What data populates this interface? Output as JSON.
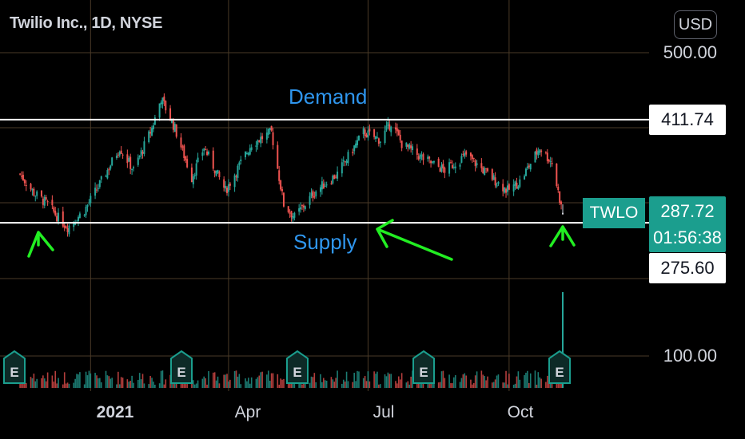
{
  "header": {
    "title": "Twilio Inc., 1D, NYSE",
    "currency": "USD"
  },
  "colors": {
    "up": "#26a69a",
    "down": "#ef5350",
    "grid": "#4a3a27",
    "level_line": "#ffffff",
    "annotation_text": "#2f96ee",
    "annotation_arrow": "#22ee22",
    "tag": "#1b9e8e"
  },
  "axis": {
    "y_ticks": [
      "500.00",
      "100.00"
    ],
    "x_ticks": [
      {
        "label": "2021",
        "bold": true
      },
      {
        "label": "Apr",
        "bold": false
      },
      {
        "label": "Jul",
        "bold": false
      },
      {
        "label": "Oct",
        "bold": false
      }
    ]
  },
  "levels": {
    "demand": {
      "label": "Demand",
      "price": "411.74"
    },
    "supply": {
      "label": "Supply",
      "price": "275.60"
    }
  },
  "last": {
    "symbol": "TWLO",
    "price": "287.72",
    "countdown": "01:56:38"
  },
  "earnings_marker_label": "E",
  "chart_data": {
    "type": "candlestick",
    "title": "Twilio Inc., 1D, NYSE",
    "y_axis": {
      "ticks": [
        100,
        500
      ],
      "currency": "USD"
    },
    "x_axis": {
      "ticks": [
        "2021",
        "Apr",
        "Jul",
        "Oct"
      ]
    },
    "horizontal_levels": [
      {
        "name": "Demand",
        "value": 411.74
      },
      {
        "name": "Supply",
        "value": 275.6
      }
    ],
    "last_price": 287.72,
    "close_path_approx": [
      {
        "date": "2020-11-16",
        "close": 340
      },
      {
        "date": "2020-11-25",
        "close": 315
      },
      {
        "date": "2020-12-04",
        "close": 300
      },
      {
        "date": "2020-12-11",
        "close": 282
      },
      {
        "date": "2020-12-17",
        "close": 270
      },
      {
        "date": "2020-12-28",
        "close": 292
      },
      {
        "date": "2021-01-08",
        "close": 330
      },
      {
        "date": "2021-01-20",
        "close": 375
      },
      {
        "date": "2021-01-29",
        "close": 345
      },
      {
        "date": "2021-02-10",
        "close": 400
      },
      {
        "date": "2021-02-16",
        "close": 440
      },
      {
        "date": "2021-02-25",
        "close": 400
      },
      {
        "date": "2021-03-08",
        "close": 335
      },
      {
        "date": "2021-03-16",
        "close": 375
      },
      {
        "date": "2021-03-30",
        "close": 318
      },
      {
        "date": "2021-04-16",
        "close": 380
      },
      {
        "date": "2021-04-29",
        "close": 395
      },
      {
        "date": "2021-05-07",
        "close": 300
      },
      {
        "date": "2021-05-14",
        "close": 283
      },
      {
        "date": "2021-05-28",
        "close": 318
      },
      {
        "date": "2021-06-11",
        "close": 340
      },
      {
        "date": "2021-06-28",
        "close": 395
      },
      {
        "date": "2021-07-09",
        "close": 385
      },
      {
        "date": "2021-07-16",
        "close": 408
      },
      {
        "date": "2021-07-23",
        "close": 380
      },
      {
        "date": "2021-08-06",
        "close": 360
      },
      {
        "date": "2021-08-20",
        "close": 345
      },
      {
        "date": "2021-09-03",
        "close": 365
      },
      {
        "date": "2021-09-17",
        "close": 340
      },
      {
        "date": "2021-09-30",
        "close": 318
      },
      {
        "date": "2021-10-08",
        "close": 330
      },
      {
        "date": "2021-10-21",
        "close": 375
      },
      {
        "date": "2021-10-29",
        "close": 355
      },
      {
        "date": "2021-11-05",
        "close": 287.72
      }
    ],
    "earnings_events": [
      "2020-11",
      "2021-02",
      "2021-05",
      "2021-08",
      "2021-11"
    ],
    "volume_spike": "2021-11-05"
  }
}
